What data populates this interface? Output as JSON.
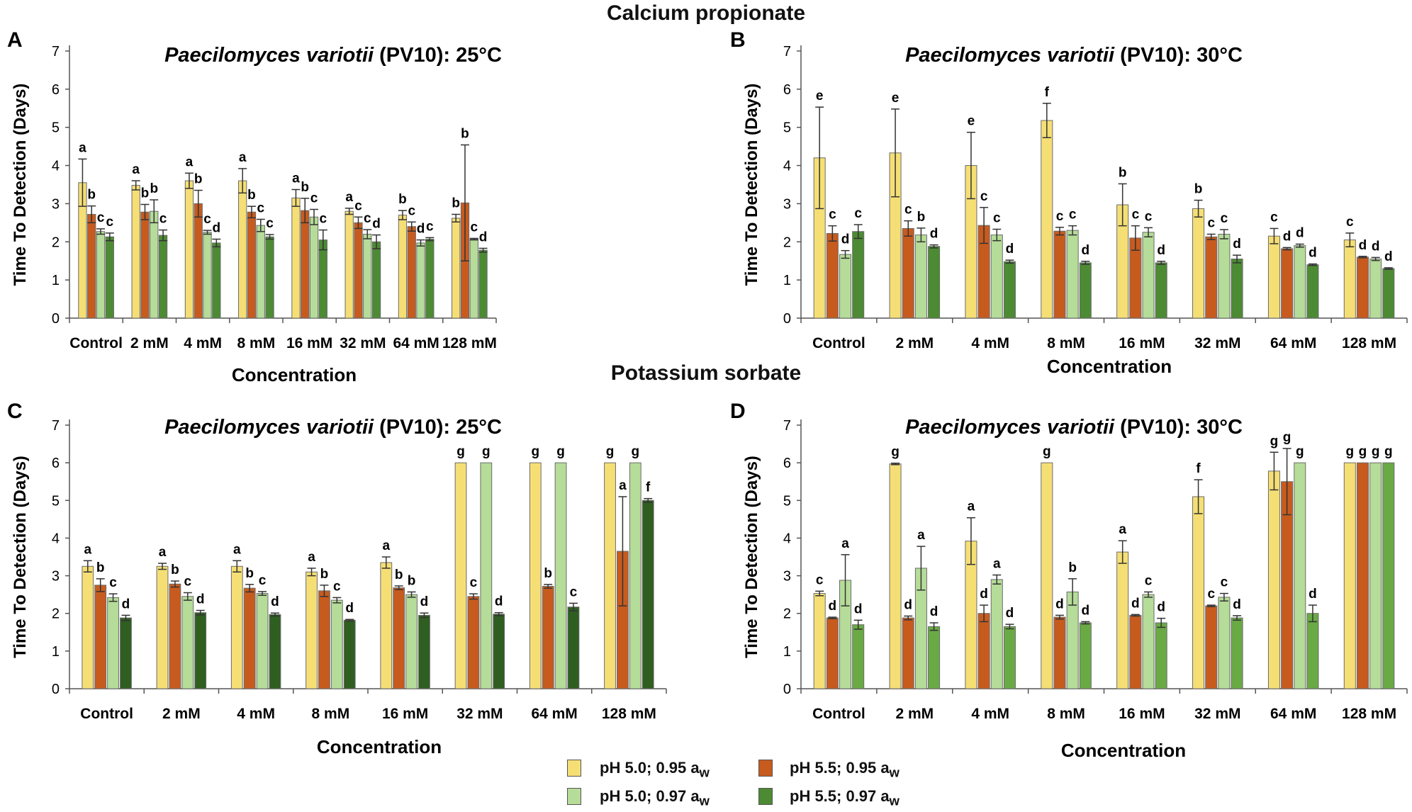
{
  "figure": {
    "section_titles": [
      "Calcium propionate",
      "Potassium sorbate"
    ],
    "legend": [
      {
        "label": "pH 5.0; 0.95 a",
        "sub": "w",
        "color": "#f5df75"
      },
      {
        "label": "pH 5.5; 0.95 a",
        "sub": "w",
        "color": "#c75b1e"
      },
      {
        "label": "pH 5.0; 0.97 a",
        "sub": "w",
        "color": "#b5dc98"
      },
      {
        "label": "pH 5.5; 0.97 a",
        "sub": "w",
        "color": "#4c8b33"
      }
    ]
  },
  "chart_data": [
    {
      "panel": "A",
      "type": "bar",
      "title_italic": "Paecilomyces variotii",
      "title_rest": " (PV10): 25°C",
      "xlabel": "Concentration",
      "ylabel": "Time To Detection (Days)",
      "ylim": [
        0,
        7
      ],
      "yticks": [
        0,
        1,
        2,
        3,
        4,
        5,
        6,
        7
      ],
      "categories": [
        "Control",
        "2 mM",
        "4 mM",
        "8 mM",
        "16 mM",
        "32 mM",
        "64 mM",
        "128 mM"
      ],
      "series": [
        {
          "name": "pH 5.0; 0.95 aw",
          "color": "#f5df75",
          "values": [
            3.55,
            3.48,
            3.6,
            3.6,
            3.15,
            2.8,
            2.7,
            2.62
          ],
          "errors": [
            0.62,
            0.12,
            0.2,
            0.32,
            0.22,
            0.08,
            0.12,
            0.1
          ],
          "labels": [
            "a",
            "a",
            "a",
            "a",
            "a",
            "a",
            "b",
            "b"
          ]
        },
        {
          "name": "pH 5.5; 0.95 aw",
          "color": "#c75b1e",
          "values": [
            2.72,
            2.78,
            3.0,
            2.78,
            2.82,
            2.5,
            2.4,
            3.02
          ],
          "errors": [
            0.22,
            0.2,
            0.35,
            0.15,
            0.32,
            0.15,
            0.12,
            1.52
          ],
          "labels": [
            "b",
            "b",
            "b",
            "b",
            "b",
            "c",
            "c",
            "b"
          ]
        },
        {
          "name": "pH 5.0; 0.97 aw",
          "color": "#b5dc98",
          "values": [
            2.27,
            2.8,
            2.25,
            2.43,
            2.65,
            2.2,
            1.97,
            2.07
          ],
          "errors": [
            0.07,
            0.3,
            0.05,
            0.16,
            0.2,
            0.12,
            0.08,
            0.02
          ],
          "labels": [
            "c",
            "b",
            "c",
            "c",
            "c",
            "c",
            "d",
            "c"
          ]
        },
        {
          "name": "pH 5.5; 0.97 aw",
          "color": "#4c8b33",
          "values": [
            2.13,
            2.17,
            1.97,
            2.13,
            2.05,
            2.0,
            2.07,
            1.78
          ],
          "errors": [
            0.1,
            0.14,
            0.1,
            0.06,
            0.26,
            0.18,
            0.04,
            0.05
          ],
          "labels": [
            "c",
            "c",
            "d",
            "c",
            "c",
            "d",
            "c",
            "d"
          ]
        }
      ]
    },
    {
      "panel": "B",
      "type": "bar",
      "title_italic": "Paecilomyces variotii",
      "title_rest": " (PV10): 30°C",
      "xlabel": "Concentration",
      "ylabel": "Time To Detection (Days)",
      "ylim": [
        0,
        7
      ],
      "yticks": [
        0,
        1,
        2,
        3,
        4,
        5,
        6,
        7
      ],
      "categories": [
        "Control",
        "2 mM",
        "4 mM",
        "8 mM",
        "16 mM",
        "32 mM",
        "64 mM",
        "128 mM"
      ],
      "series": [
        {
          "name": "pH 5.0; 0.95 aw",
          "color": "#f5df75",
          "values": [
            4.2,
            4.33,
            4.0,
            5.18,
            2.97,
            2.87,
            2.15,
            2.05
          ],
          "errors": [
            1.33,
            1.15,
            0.87,
            0.45,
            0.55,
            0.22,
            0.2,
            0.18
          ],
          "labels": [
            "e",
            "e",
            "e",
            "f",
            "b",
            "b",
            "c",
            "c"
          ]
        },
        {
          "name": "pH 5.5; 0.95 aw",
          "color": "#c75b1e",
          "values": [
            2.22,
            2.35,
            2.43,
            2.28,
            2.1,
            2.13,
            1.82,
            1.6
          ],
          "errors": [
            0.2,
            0.2,
            0.47,
            0.1,
            0.32,
            0.07,
            0.03,
            0.02
          ],
          "labels": [
            "c",
            "c",
            "c",
            "c",
            "c",
            "c",
            "d",
            "d"
          ]
        },
        {
          "name": "pH 5.0; 0.97 aw",
          "color": "#b5dc98",
          "values": [
            1.67,
            2.18,
            2.18,
            2.3,
            2.25,
            2.2,
            1.9,
            1.55
          ],
          "errors": [
            0.1,
            0.18,
            0.15,
            0.12,
            0.12,
            0.12,
            0.04,
            0.04
          ],
          "labels": [
            "d",
            "b",
            "c",
            "c",
            "c",
            "c",
            "d",
            "d"
          ]
        },
        {
          "name": "pH 5.5; 0.97 aw",
          "color": "#4c8b33",
          "values": [
            2.27,
            1.88,
            1.48,
            1.45,
            1.45,
            1.55,
            1.4,
            1.3
          ],
          "errors": [
            0.18,
            0.04,
            0.04,
            0.04,
            0.04,
            0.1,
            0.02,
            0.02
          ],
          "labels": [
            "c",
            "d",
            "d",
            "d",
            "d",
            "d",
            "d",
            "d"
          ]
        }
      ]
    },
    {
      "panel": "C",
      "type": "bar",
      "title_italic": "Paecilomyces variotii",
      "title_rest": " (PV10): 25°C",
      "xlabel": "Concentration",
      "ylabel": "Time To Detection (Days)",
      "ylim": [
        0,
        7
      ],
      "yticks": [
        0,
        1,
        2,
        3,
        4,
        5,
        6,
        7
      ],
      "categories": [
        "Control",
        "2 mM",
        "4 mM",
        "8 mM",
        "16 mM",
        "32 mM",
        "64 mM",
        "128 mM"
      ],
      "series": [
        {
          "name": "pH 5.0; 0.95 aw",
          "color": "#f5df75",
          "values": [
            3.25,
            3.25,
            3.25,
            3.1,
            3.35,
            6.0,
            6.0,
            6.0
          ],
          "errors": [
            0.15,
            0.08,
            0.15,
            0.1,
            0.15,
            0,
            0,
            0
          ],
          "labels": [
            "a",
            "a",
            "a",
            "a",
            "a",
            "g",
            "g",
            "g"
          ]
        },
        {
          "name": "pH 5.5; 0.95 aw",
          "color": "#c75b1e",
          "values": [
            2.75,
            2.78,
            2.67,
            2.6,
            2.68,
            2.45,
            2.72,
            3.65
          ],
          "errors": [
            0.17,
            0.08,
            0.1,
            0.15,
            0.05,
            0.07,
            0.05,
            1.45
          ],
          "labels": [
            "b",
            "b",
            "b",
            "b",
            "b",
            "c",
            "b",
            "a"
          ]
        },
        {
          "name": "pH 5.0; 0.97 aw",
          "color": "#b5dc98",
          "values": [
            2.42,
            2.45,
            2.53,
            2.35,
            2.5,
            6.0,
            6.0,
            6.0
          ],
          "errors": [
            0.1,
            0.1,
            0.05,
            0.07,
            0.07,
            0,
            0,
            0
          ],
          "labels": [
            "c",
            "c",
            "c",
            "c",
            "b",
            "g",
            "g",
            "g"
          ]
        },
        {
          "name": "pH 5.5; 0.97 aw",
          "color": "#2f5e21",
          "values": [
            1.88,
            2.02,
            1.97,
            1.82,
            1.95,
            1.98,
            2.17,
            5.0
          ],
          "errors": [
            0.07,
            0.06,
            0.04,
            0.02,
            0.06,
            0.04,
            0.1,
            0.05
          ],
          "labels": [
            "d",
            "d",
            "d",
            "d",
            "d",
            "d",
            "c",
            "f"
          ]
        }
      ]
    },
    {
      "panel": "D",
      "type": "bar",
      "title_italic": "Paecilomyces variotii",
      "title_rest": " (PV10): 30°C",
      "xlabel": "Concentration",
      "ylabel": "Time To Detection (Days)",
      "ylim": [
        0,
        7
      ],
      "yticks": [
        0,
        1,
        2,
        3,
        4,
        5,
        6,
        7
      ],
      "categories": [
        "Control",
        "2 mM",
        "4 mM",
        "8 mM",
        "16 mM",
        "32 mM",
        "64 mM",
        "128 mM"
      ],
      "series": [
        {
          "name": "pH 5.0; 0.95 aw",
          "color": "#f5df75",
          "values": [
            2.53,
            5.97,
            3.92,
            6.0,
            3.63,
            5.1,
            5.78,
            6.0
          ],
          "errors": [
            0.06,
            0.02,
            0.62,
            0,
            0.3,
            0.45,
            0.5,
            0
          ],
          "labels": [
            "c",
            "g",
            "a",
            "g",
            "a",
            "f",
            "g",
            "g"
          ]
        },
        {
          "name": "pH 5.5; 0.95 aw",
          "color": "#c75b1e",
          "values": [
            1.88,
            1.88,
            2.0,
            1.9,
            1.95,
            2.2,
            5.5,
            6.0
          ],
          "errors": [
            0.02,
            0.05,
            0.22,
            0.05,
            0.02,
            0.02,
            0.88,
            0
          ],
          "labels": [
            "d",
            "d",
            "d",
            "d",
            "d",
            "c",
            "g",
            "g"
          ]
        },
        {
          "name": "pH 5.0; 0.97 aw",
          "color": "#b5dc98",
          "values": [
            2.88,
            3.2,
            2.9,
            2.57,
            2.5,
            2.43,
            6.0,
            6.0
          ],
          "errors": [
            0.68,
            0.58,
            0.12,
            0.35,
            0.07,
            0.1,
            0,
            0
          ],
          "labels": [
            "a",
            "a",
            "a",
            "b",
            "c",
            "c",
            "g",
            "g"
          ]
        },
        {
          "name": "pH 5.5; 0.97 aw",
          "color": "#6aaa45",
          "values": [
            1.7,
            1.65,
            1.65,
            1.75,
            1.75,
            1.88,
            2.0,
            6.0
          ],
          "errors": [
            0.12,
            0.1,
            0.06,
            0.03,
            0.12,
            0.06,
            0.22,
            0
          ],
          "labels": [
            "d",
            "d",
            "d",
            "d",
            "d",
            "d",
            "d",
            "g"
          ]
        }
      ]
    }
  ]
}
